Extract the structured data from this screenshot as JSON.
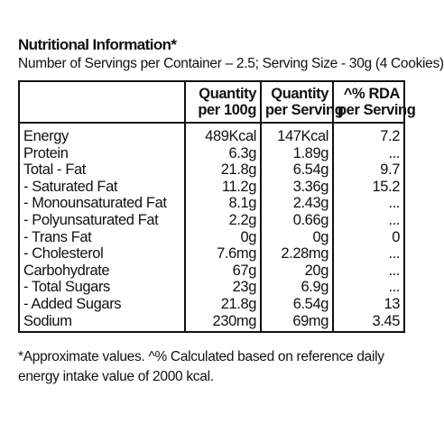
{
  "title": "Nutritional Information*",
  "subtitle": "Number of Servings per Container – 2.5; Serving Size - 30g (4 Cookies)",
  "headers": {
    "per100_line1": "Quantity",
    "per100_line2": "per 100g",
    "perServing_line1": "Quantity",
    "perServing_line2": "per Serving",
    "rda_line1": "^% RDA",
    "rda_line2": "per Serving"
  },
  "rows": [
    {
      "name": "Energy",
      "per100": "489Kcal",
      "serving": "147Kcal",
      "rda": "7.2"
    },
    {
      "name": "Protein",
      "per100": "6.3g",
      "serving": "1.89g",
      "rda": "..."
    },
    {
      "name": "Total - Fat",
      "per100": "21.8g",
      "serving": "6.54g",
      "rda": "9.7"
    },
    {
      "name": "- Saturated Fat",
      "per100": "11.2g",
      "serving": "3.36g",
      "rda": "15.2"
    },
    {
      "name": "- Monounsaturated Fat",
      "per100": "8.1g",
      "serving": "2.43g",
      "rda": "..."
    },
    {
      "name": "- Polyunsaturated Fat",
      "per100": "2.2g",
      "serving": "0.66g",
      "rda": "..."
    },
    {
      "name": "- Trans Fat",
      "per100": "0g",
      "serving": "0g",
      "rda": "0"
    },
    {
      "name": "- Cholesterol",
      "per100": "7.6mg",
      "serving": "2.28mg",
      "rda": "..."
    },
    {
      "name": "Carbohydrate",
      "per100": "67g",
      "serving": "20g",
      "rda": "..."
    },
    {
      "name": "- Total Sugars",
      "per100": "23g",
      "serving": "6.9g",
      "rda": "..."
    },
    {
      "name": "- Added Sugars",
      "per100": "21.8g",
      "serving": "6.54g",
      "rda": "13"
    },
    {
      "name": "Sodium",
      "per100": "230mg",
      "serving": "69mg",
      "rda": "3.45"
    }
  ],
  "footnote": "*Approximate values. ^% Calculated based on reference daily energy intake value of 2000 kcal."
}
